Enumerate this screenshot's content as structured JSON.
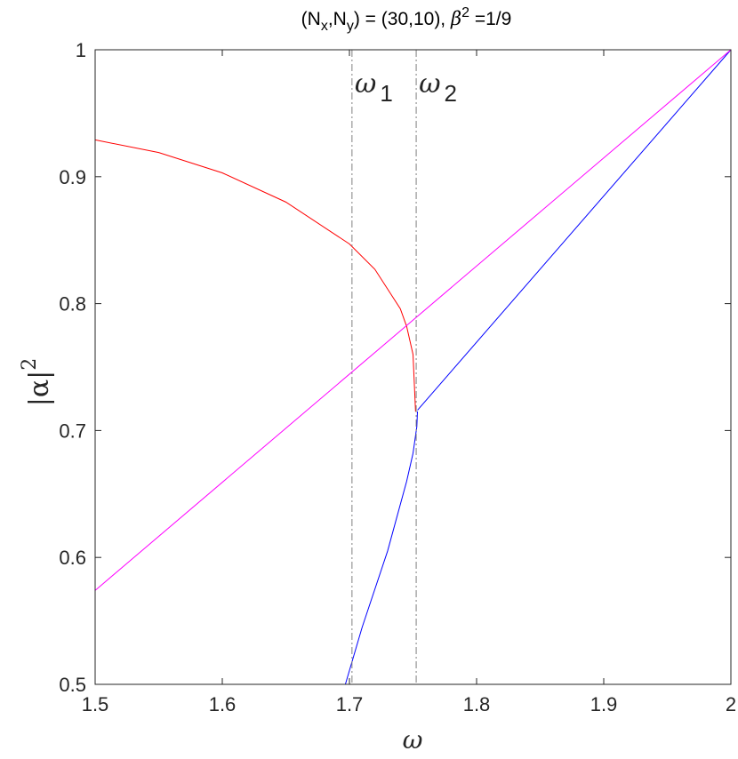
{
  "chart_data": {
    "type": "line",
    "title": {
      "prefix": "(N",
      "sub_x": "x",
      "comma": ",N",
      "sub_y": "y",
      "mid": ") = (30,10),  ",
      "beta": "β",
      "beta_sup": "2",
      "suffix": " =1/9"
    },
    "xlabel": "ω",
    "ylabel": {
      "base": "|α|",
      "sup": "2"
    },
    "xlim": [
      1.5,
      2.0
    ],
    "ylim": [
      0.5,
      1.0
    ],
    "xticks": [
      1.5,
      1.6,
      1.7,
      1.8,
      1.9,
      2.0
    ],
    "xtick_labels": [
      "1.5",
      "1.6",
      "1.7",
      "1.8",
      "1.9",
      "2"
    ],
    "yticks": [
      0.5,
      0.6,
      0.7,
      0.8,
      0.9,
      1.0
    ],
    "ytick_labels": [
      "0.5",
      "0.6",
      "0.7",
      "0.8",
      "0.9",
      "1"
    ],
    "grid": false,
    "series": [
      {
        "color": "#ff0000",
        "x": [
          1.5,
          1.55,
          1.6,
          1.65,
          1.7,
          1.72,
          1.74,
          1.745,
          1.75,
          1.752
        ],
        "y": [
          0.929,
          0.919,
          0.903,
          0.88,
          0.847,
          0.827,
          0.796,
          0.782,
          0.76,
          0.715
        ]
      },
      {
        "color": "#0000ff",
        "x": [
          1.6968,
          1.71,
          1.73,
          1.745,
          1.75,
          1.753,
          1.7535
        ],
        "y": [
          0.5,
          0.545,
          0.605,
          0.66,
          0.682,
          0.703,
          0.715
        ]
      },
      {
        "color": "#0000ff",
        "x": [
          1.7535,
          2.0
        ],
        "y": [
          0.716,
          1.0
        ]
      },
      {
        "color": "#ff00ff",
        "x": [
          1.5,
          2.0
        ],
        "y": [
          0.574,
          1.0
        ]
      }
    ],
    "vlines": [
      {
        "x": 1.702,
        "label": "ω",
        "sub": "1",
        "color": "#808080"
      },
      {
        "x": 1.7525,
        "label": "ω",
        "sub": "2",
        "color": "#808080"
      }
    ]
  }
}
